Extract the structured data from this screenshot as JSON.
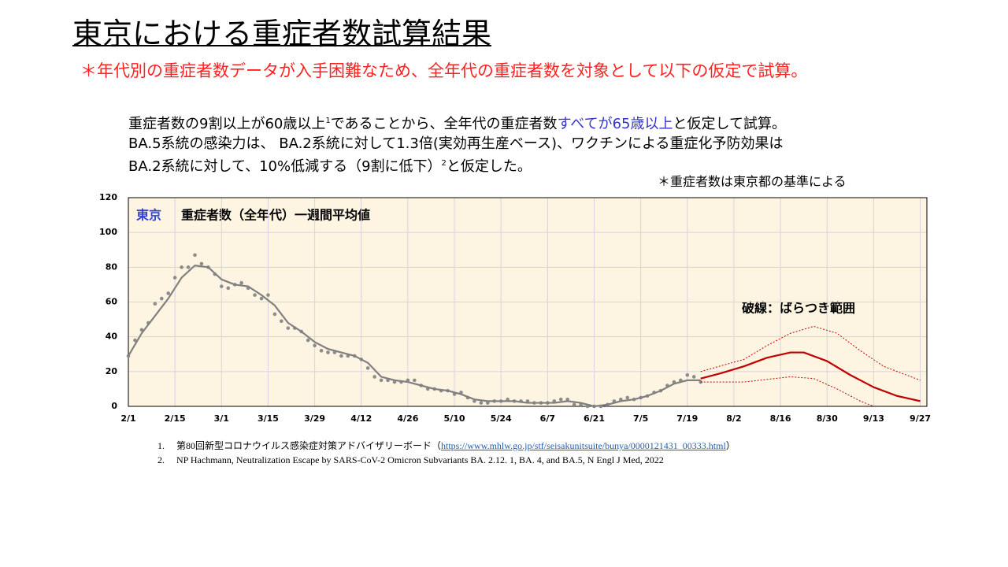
{
  "header": {
    "title": "東京における重症者数試算結果",
    "subtitle": "＊年代別の重症者数データが入手困難なため、全年代の重症者数を対象として以下の仮定で試算。"
  },
  "body": {
    "lines": [
      [
        {
          "text": "重症者数の9割以上が60歳以上"
        },
        {
          "sup": "1"
        },
        {
          "text": "であることから、全年代の重症者数"
        },
        {
          "text": "すべてが65歳以上",
          "color": "#3333cc"
        },
        {
          "text": "と仮定して試算。"
        }
      ],
      [
        {
          "text": "BA.5系統の感染力は、 BA.2系統に対して1.3倍(実効再生産ベース)、ワクチンによる重症化予防効果は"
        }
      ],
      [
        {
          "text": "BA.2系統に対して、10%低減する（9割に低下）"
        },
        {
          "sup": "2"
        },
        {
          "text": "と仮定した。"
        }
      ]
    ],
    "note": "＊重症者数は東京都の基準による"
  },
  "chart_data": {
    "type": "line",
    "title": "東京",
    "subtitle": "重症者数（全年代）一週間平均値",
    "annotation": "破線：ばらつき範囲",
    "xlim": [
      0,
      240
    ],
    "xticks": [
      {
        "value": 0,
        "label": "2/1"
      },
      {
        "value": 14,
        "label": "2/15"
      },
      {
        "value": 28,
        "label": "3/1"
      },
      {
        "value": 42,
        "label": "3/15"
      },
      {
        "value": 56,
        "label": "3/29"
      },
      {
        "value": 70,
        "label": "4/12"
      },
      {
        "value": 84,
        "label": "4/26"
      },
      {
        "value": 98,
        "label": "5/10"
      },
      {
        "value": 112,
        "label": "5/24"
      },
      {
        "value": 126,
        "label": "6/7"
      },
      {
        "value": 140,
        "label": "6/21"
      },
      {
        "value": 154,
        "label": "7/5"
      },
      {
        "value": 168,
        "label": "7/19"
      },
      {
        "value": 182,
        "label": "8/2"
      },
      {
        "value": 196,
        "label": "8/16"
      },
      {
        "value": 210,
        "label": "8/30"
      },
      {
        "value": 224,
        "label": "9/13"
      },
      {
        "value": 238,
        "label": "9/27"
      }
    ],
    "ylim": [
      0,
      120
    ],
    "yticks": [
      0,
      20,
      40,
      60,
      80,
      100,
      120
    ],
    "grid": true,
    "series": [
      {
        "color": "#8c8c8c",
        "marker": true,
        "x": [
          0,
          2,
          4,
          6,
          8,
          10,
          12,
          14,
          16,
          18,
          20,
          22,
          24,
          26,
          28,
          30,
          32,
          34,
          36,
          38,
          40,
          42,
          44,
          46,
          48,
          50,
          52,
          54,
          56,
          58,
          60,
          62,
          64,
          66,
          68,
          70,
          72,
          74,
          76,
          78,
          80,
          82,
          84,
          86,
          88,
          90,
          92,
          94,
          96,
          98,
          100,
          102,
          104,
          106,
          108,
          110,
          112,
          114,
          116,
          118,
          120,
          122,
          124,
          126,
          128,
          130,
          132,
          134,
          136,
          138,
          140,
          142,
          144,
          146,
          148,
          150,
          152,
          154,
          156,
          158,
          160,
          162,
          164,
          166,
          168,
          170,
          172
        ],
        "values": [
          29,
          38,
          44,
          48,
          59,
          62,
          65,
          74,
          80,
          80,
          87,
          82,
          80,
          76,
          69,
          68,
          70,
          71,
          68,
          64,
          62,
          64,
          53,
          49,
          45,
          45,
          43,
          38,
          35,
          32,
          31,
          31,
          29,
          29,
          29,
          27,
          22,
          17,
          15,
          15,
          14,
          14,
          15,
          15,
          12,
          10,
          10,
          9,
          9,
          7,
          8,
          5,
          3,
          2,
          2,
          3,
          3,
          4,
          3,
          3,
          3,
          2,
          2,
          2,
          3,
          4,
          4,
          1,
          1,
          0,
          0,
          0,
          1,
          3,
          4,
          5,
          4,
          5,
          6,
          8,
          9,
          12,
          14,
          15,
          18,
          17,
          14
        ]
      },
      {
        "color": "#808080",
        "x": [
          0,
          4,
          8,
          12,
          16,
          20,
          24,
          28,
          32,
          36,
          40,
          44,
          48,
          52,
          56,
          60,
          64,
          68,
          72,
          76,
          80,
          84,
          88,
          92,
          96,
          100,
          104,
          108,
          112,
          116,
          120,
          124,
          128,
          132,
          136,
          140,
          144,
          148,
          152,
          156,
          160,
          164,
          168,
          172
        ],
        "values": [
          29,
          42,
          52,
          62,
          74,
          81,
          80,
          73,
          70,
          69,
          64,
          58,
          48,
          43,
          37,
          33,
          31,
          29,
          25,
          17,
          15,
          14,
          12,
          10,
          9,
          7,
          4,
          3,
          3,
          3,
          2,
          2,
          2,
          3,
          2,
          0,
          1,
          3,
          4,
          6,
          9,
          13,
          15,
          15
        ]
      },
      {
        "color": "#c00000",
        "x": [
          172,
          178,
          185,
          192,
          199,
          203,
          210,
          217,
          224,
          231,
          238
        ],
        "values": [
          16,
          19,
          23,
          28,
          31,
          31,
          26,
          18,
          11,
          6,
          3
        ]
      },
      {
        "color": "#c00000",
        "dash": true,
        "x": [
          172,
          185,
          192,
          199,
          206,
          213,
          220,
          227,
          238
        ],
        "values": [
          20,
          27,
          35,
          42,
          46,
          42,
          32,
          23,
          15
        ]
      },
      {
        "color": "#c00000",
        "dash": true,
        "x": [
          172,
          185,
          199,
          206,
          213,
          220,
          224
        ],
        "values": [
          14,
          14,
          17,
          16,
          10,
          3,
          0
        ]
      }
    ]
  },
  "references": [
    {
      "number": "1.",
      "text": "第80回新型コロナウイルス感染症対策アドバイザリーボード（",
      "link": "https://www.mhlw.go.jp/stf/seisakunitsuite/bunya/0000121431_00333.html",
      "end": "）"
    },
    {
      "number": "2.",
      "text": "NP Hachmann, Neutralization Escape by SARS-CoV-2 Omicron Subvariants BA. 2.12. 1, BA. 4, and BA.5, N Engl J Med, 2022"
    }
  ]
}
